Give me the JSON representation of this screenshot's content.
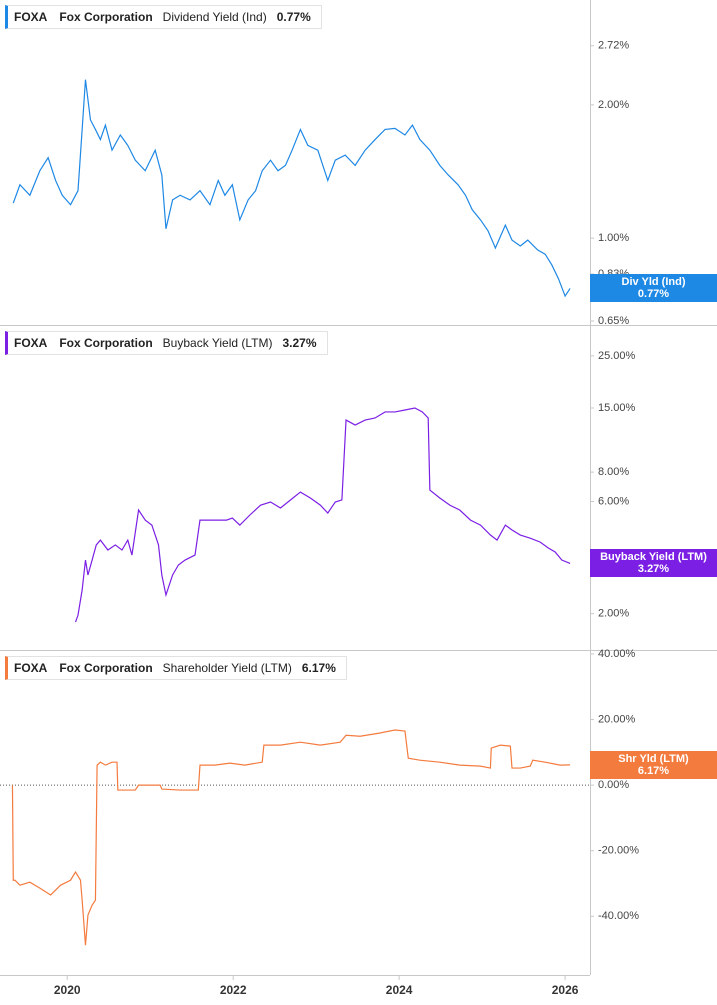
{
  "chart_data": [
    {
      "type": "line",
      "ticker": "FOXA",
      "company": "Fox Corporation",
      "log_scale": true,
      "xlim": [
        2019.19,
        2026.3
      ],
      "ylim": [
        0.64,
        3.45
      ],
      "yticks": [
        {
          "value": 2.72,
          "label": "2.72%"
        },
        {
          "value": 2.0,
          "label": "2.00%"
        },
        {
          "value": 1.0,
          "label": "1.00%"
        },
        {
          "value": 0.83,
          "label": "0.83%"
        },
        {
          "value": 0.65,
          "label": "0.65%"
        }
      ],
      "series": [
        {
          "name": "Dividend Yield (Ind)",
          "short_name": "Div Yld (Ind)",
          "last_label": "0.77%",
          "color": "#1e88e5",
          "x": [
            2019.35,
            2019.43,
            2019.55,
            2019.67,
            2019.77,
            2019.86,
            2019.94,
            2020.04,
            2020.13,
            2020.18,
            2020.22,
            2020.28,
            2020.34,
            2020.4,
            2020.46,
            2020.54,
            2020.64,
            2020.73,
            2020.82,
            2020.94,
            2021.06,
            2021.14,
            2021.19,
            2021.27,
            2021.36,
            2021.48,
            2021.6,
            2021.72,
            2021.82,
            2021.9,
            2021.99,
            2022.08,
            2022.18,
            2022.27,
            2022.35,
            2022.45,
            2022.54,
            2022.63,
            2022.71,
            2022.81,
            2022.9,
            2023.02,
            2023.14,
            2023.23,
            2023.35,
            2023.47,
            2023.59,
            2023.71,
            2023.83,
            2023.95,
            2024.07,
            2024.16,
            2024.25,
            2024.37,
            2024.49,
            2024.59,
            2024.71,
            2024.8,
            2024.88,
            2024.98,
            2025.07,
            2025.16,
            2025.28,
            2025.36,
            2025.46,
            2025.55,
            2025.67,
            2025.76,
            2025.84,
            2025.92,
            2026.0,
            2026.06
          ],
          "values": [
            1.2,
            1.32,
            1.25,
            1.42,
            1.52,
            1.35,
            1.25,
            1.19,
            1.28,
            1.76,
            2.28,
            1.85,
            1.76,
            1.67,
            1.8,
            1.58,
            1.71,
            1.62,
            1.5,
            1.42,
            1.58,
            1.39,
            1.05,
            1.22,
            1.25,
            1.22,
            1.28,
            1.19,
            1.35,
            1.25,
            1.32,
            1.1,
            1.22,
            1.28,
            1.42,
            1.5,
            1.42,
            1.46,
            1.58,
            1.76,
            1.62,
            1.58,
            1.35,
            1.5,
            1.54,
            1.46,
            1.58,
            1.67,
            1.76,
            1.77,
            1.71,
            1.8,
            1.67,
            1.58,
            1.46,
            1.39,
            1.32,
            1.25,
            1.16,
            1.1,
            1.04,
            0.95,
            1.07,
            0.99,
            0.96,
            0.99,
            0.94,
            0.92,
            0.87,
            0.81,
            0.74,
            0.77
          ]
        }
      ]
    },
    {
      "type": "line",
      "ticker": "FOXA",
      "company": "Fox Corporation",
      "log_scale": true,
      "xlim": [
        2019.19,
        2026.3
      ],
      "ylim": [
        1.4,
        33.5
      ],
      "yticks": [
        {
          "value": 25,
          "label": "25.00%"
        },
        {
          "value": 15,
          "label": "15.00%"
        },
        {
          "value": 8,
          "label": "8.00%"
        },
        {
          "value": 6,
          "label": "6.00%"
        },
        {
          "value": 2,
          "label": "2.00%"
        }
      ],
      "series": [
        {
          "name": "Buyback Yield (LTM)",
          "short_name": "Buyback Yield (LTM)",
          "last_label": "3.27%",
          "color": "#7b1fe4",
          "x": [
            2020.1,
            2020.13,
            2020.18,
            2020.22,
            2020.25,
            2020.3,
            2020.35,
            2020.4,
            2020.49,
            2020.58,
            2020.66,
            2020.73,
            2020.78,
            2020.86,
            2020.94,
            2021.02,
            2021.1,
            2021.14,
            2021.19,
            2021.27,
            2021.34,
            2021.42,
            2021.54,
            2021.6,
            2021.72,
            2021.82,
            2021.92,
            2021.99,
            2022.08,
            2022.2,
            2022.33,
            2022.45,
            2022.57,
            2022.69,
            2022.81,
            2022.93,
            2023.05,
            2023.14,
            2023.23,
            2023.31,
            2023.36,
            2023.47,
            2023.59,
            2023.71,
            2023.83,
            2023.95,
            2024.07,
            2024.19,
            2024.28,
            2024.35,
            2024.37,
            2024.49,
            2024.61,
            2024.73,
            2024.86,
            2024.98,
            2025.1,
            2025.18,
            2025.28,
            2025.36,
            2025.46,
            2025.58,
            2025.7,
            2025.8,
            2025.88,
            2025.96,
            2026.06
          ],
          "values": [
            1.84,
            1.97,
            2.52,
            3.38,
            2.92,
            3.38,
            3.92,
            4.11,
            3.73,
            3.92,
            3.73,
            4.11,
            3.55,
            5.52,
            5.0,
            4.76,
            3.92,
            2.92,
            2.4,
            2.92,
            3.22,
            3.38,
            3.55,
            5.0,
            5.0,
            5.0,
            5.0,
            5.1,
            4.76,
            5.25,
            5.79,
            5.97,
            5.63,
            6.09,
            6.58,
            6.21,
            5.79,
            5.36,
            5.97,
            6.09,
            13.33,
            12.69,
            13.33,
            13.6,
            14.43,
            14.43,
            14.71,
            15.0,
            14.43,
            13.6,
            6.71,
            6.21,
            5.79,
            5.52,
            5.0,
            4.76,
            4.32,
            4.11,
            4.76,
            4.54,
            4.32,
            4.19,
            4.03,
            3.8,
            3.66,
            3.38,
            3.27
          ]
        }
      ]
    },
    {
      "type": "line",
      "ticker": "FOXA",
      "company": "Fox Corporation",
      "log_scale": false,
      "zero_line": true,
      "xlim": [
        2019.19,
        2026.3
      ],
      "xticks": [
        2020,
        2022,
        2024,
        2026
      ],
      "ylim": [
        -57.9,
        40.9
      ],
      "yticks": [
        {
          "value": 40,
          "label": "40.00%"
        },
        {
          "value": 20,
          "label": "20.00%"
        },
        {
          "value": 0,
          "label": "0.00%"
        },
        {
          "value": -20,
          "label": "-20.00%"
        },
        {
          "value": -40,
          "label": "-40.00%"
        }
      ],
      "series": [
        {
          "name": "Shareholder Yield (LTM)",
          "short_name": "Shr Yld (LTM)",
          "last_label": "6.17%",
          "color": "#f47b3e",
          "x": [
            2019.34,
            2019.35,
            2019.37,
            2019.43,
            2019.55,
            2019.67,
            2019.8,
            2019.92,
            2020.04,
            2020.1,
            2020.16,
            2020.18,
            2020.22,
            2020.25,
            2020.3,
            2020.34,
            2020.36,
            2020.4,
            2020.46,
            2020.54,
            2020.6,
            2020.61,
            2020.7,
            2020.82,
            2020.86,
            2021.0,
            2021.12,
            2021.14,
            2021.36,
            2021.58,
            2021.6,
            2021.78,
            2021.96,
            2022.14,
            2022.35,
            2022.37,
            2022.57,
            2022.81,
            2023.05,
            2023.29,
            2023.36,
            2023.53,
            2023.77,
            2023.95,
            2024.07,
            2024.11,
            2024.25,
            2024.49,
            2024.73,
            2024.98,
            2025.1,
            2025.11,
            2025.22,
            2025.34,
            2025.36,
            2025.46,
            2025.58,
            2025.61,
            2025.76,
            2025.94,
            2026.06
          ],
          "values": [
            0,
            -29.0,
            -29.0,
            -30.5,
            -29.6,
            -31.4,
            -33.5,
            -30.5,
            -29.0,
            -26.5,
            -29.0,
            -35.1,
            -48.8,
            -39.6,
            -36.6,
            -35.1,
            6.1,
            7.0,
            6.1,
            7.0,
            7.0,
            -1.5,
            -1.5,
            -1.5,
            0,
            0,
            0,
            -1.2,
            -1.5,
            -1.5,
            6.1,
            6.1,
            6.7,
            6.1,
            7.0,
            12.2,
            12.2,
            13.1,
            12.2,
            13.1,
            15.2,
            14.9,
            15.9,
            16.8,
            16.5,
            8.2,
            7.6,
            7.0,
            6.1,
            5.8,
            5.2,
            11.3,
            12.2,
            11.9,
            5.2,
            5.2,
            5.8,
            7.6,
            7.0,
            6.1,
            6.17
          ]
        }
      ]
    }
  ]
}
